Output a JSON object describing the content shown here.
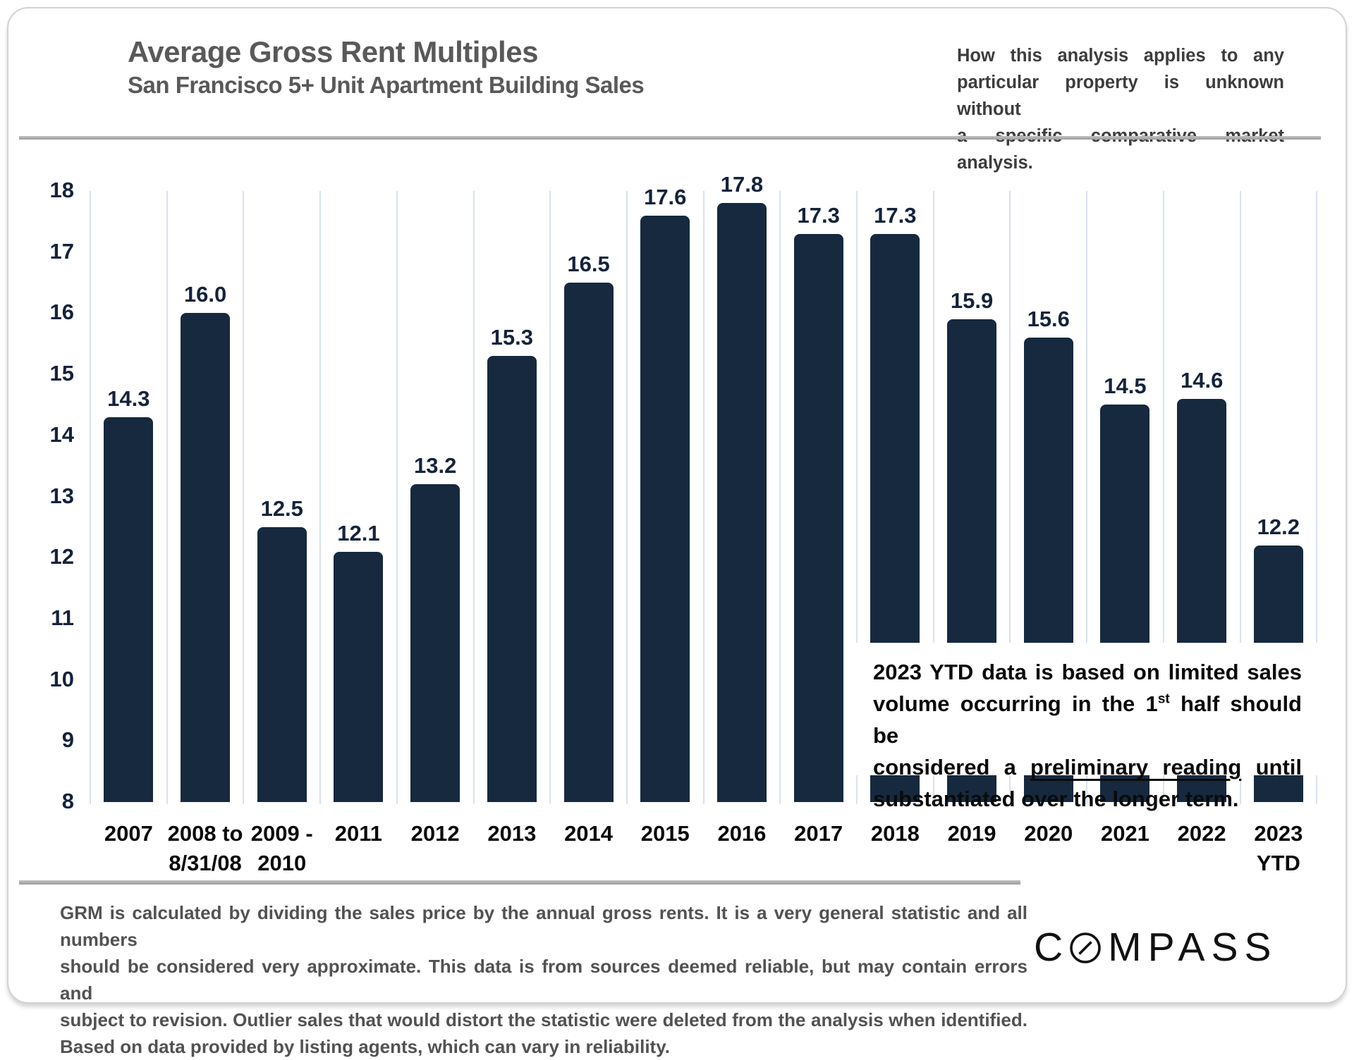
{
  "header": {
    "title": "Average Gross Rent Multiples",
    "subtitle": "San Francisco 5+ Unit Apartment Building Sales",
    "note_lines": [
      "How this analysis applies to any",
      "particular property is unknown without",
      "a specific comparative market analysis."
    ]
  },
  "chart_data": {
    "type": "bar",
    "title": "Average Gross Rent Multiples",
    "subtitle": "San Francisco 5+ Unit Apartment Building Sales",
    "categories": [
      "2007",
      "2008 to\n8/31/08",
      "2009 -\n2010",
      "2011",
      "2012",
      "2013",
      "2014",
      "2015",
      "2016",
      "2017",
      "2018",
      "2019",
      "2020",
      "2021",
      "2022",
      "2023\nYTD"
    ],
    "values": [
      14.3,
      16.0,
      12.5,
      12.1,
      13.2,
      15.3,
      16.5,
      17.6,
      17.8,
      17.3,
      17.3,
      15.9,
      15.6,
      14.5,
      14.6,
      12.2
    ],
    "value_label_decimals": 1,
    "ylim": [
      8,
      18
    ],
    "ytick_step": 1,
    "grid": "vertical-gridlines-on",
    "legend": "none",
    "bar_color": "#16293f",
    "gridline_color": "#d9e2ee",
    "xlabel": "",
    "ylabel": ""
  },
  "overlay_note": {
    "lines": [
      [
        {
          "text": "2023 YTD data is based on limited sales"
        }
      ],
      [
        {
          "text": "volume occurring in the 1"
        },
        {
          "text": "st",
          "sup": true
        },
        {
          "text": " half should be"
        }
      ],
      [
        {
          "text": "considered a "
        },
        {
          "text": "preliminary reading",
          "underline": true
        },
        {
          "text": " until"
        }
      ],
      [
        {
          "text": "substantiated over the longer term."
        }
      ]
    ]
  },
  "footer": {
    "disclaimer_lines": [
      "GRM is calculated by dividing the sales price by the annual gross rents. It is a very general statistic and all numbers",
      "should be considered very approximate. This data is from sources deemed reliable, but may contain errors and",
      "subject to revision. Outlier sales that would distort the statistic were deleted from the analysis when identified.",
      "Based on data provided by listing agents, which can vary in reliability."
    ],
    "logo": {
      "text": "COMPASS",
      "part1": "C",
      "part2": "MPASS"
    }
  }
}
